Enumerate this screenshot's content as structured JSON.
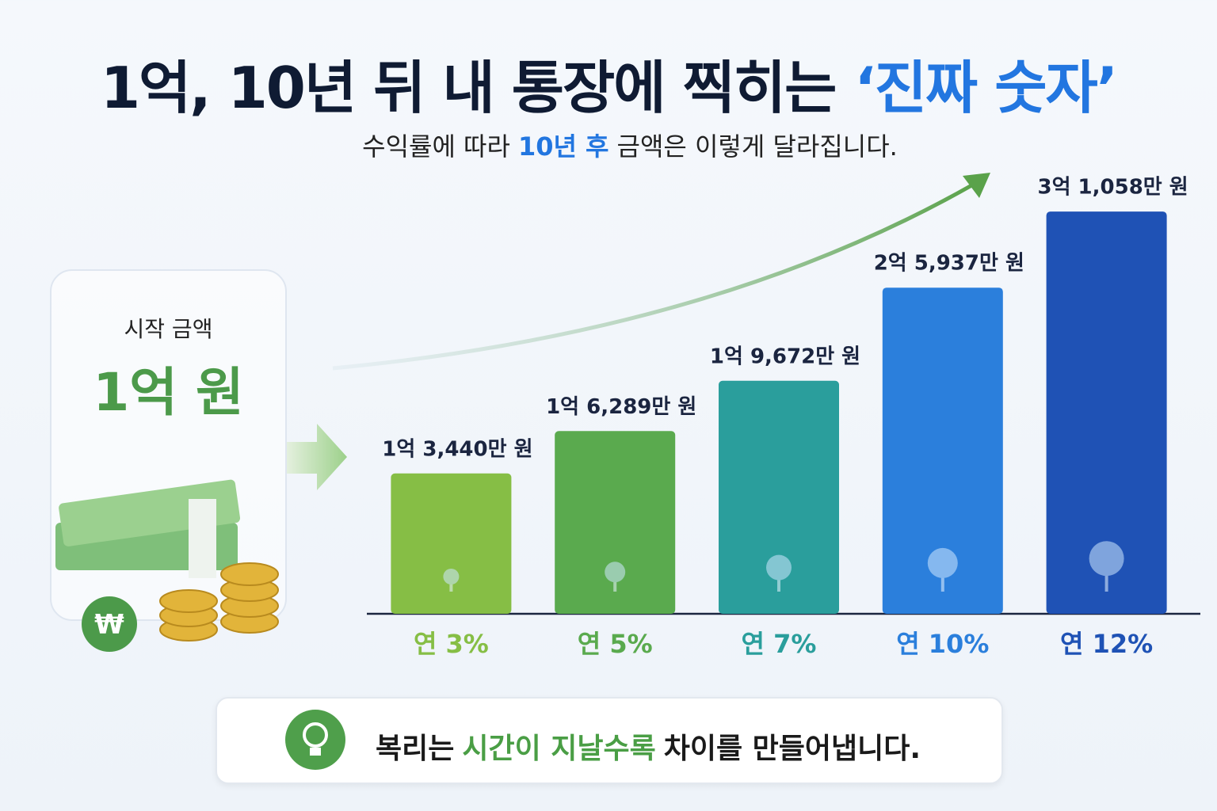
{
  "header": {
    "title": [
      "1억, 10년 뒤 내 통장에 찍히는",
      "‘진짜 숫자’"
    ],
    "subtitle": [
      "수익률에 따라",
      "10년 후",
      "금액은 이렇게 달라집니다."
    ]
  },
  "start_card": {
    "label": "시작 금액",
    "amount": "1억 원",
    "currency_symbol": "₩"
  },
  "chart_data": {
    "type": "bar",
    "categories": [
      "연 3%",
      "연 5%",
      "연 7%",
      "연 10%",
      "연 12%"
    ],
    "values": [
      13440,
      16289,
      19672,
      25937,
      31058
    ],
    "value_labels": [
      "1억 3,440만 원",
      "1억 6,289만 원",
      "1억 9,672만 원",
      "2억 5,937만 원",
      "3억 1,058만 원"
    ],
    "colors": [
      "#86be45",
      "#5aaa4e",
      "#2a9e9c",
      "#2b7fdc",
      "#1f52b5"
    ],
    "ylim": [
      4000,
      32500
    ]
  },
  "footer": {
    "text": [
      "복리는",
      "시간이 지날수록",
      "차이를 만들어냅니다."
    ]
  }
}
